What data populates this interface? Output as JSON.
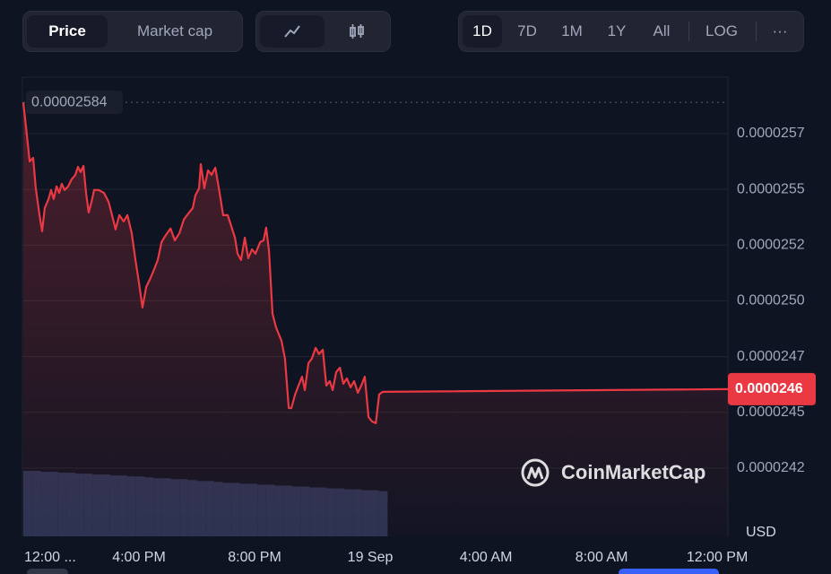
{
  "chart_data": {
    "type": "line",
    "x": [
      0,
      0.12,
      0.22,
      0.34,
      0.43,
      0.56,
      0.65,
      0.74,
      0.87,
      0.96,
      1.05,
      1.15,
      1.24,
      1.33,
      1.43,
      1.55,
      1.67,
      1.8,
      1.89,
      1.98,
      2.08,
      2.17,
      2.26,
      2.36,
      2.45,
      2.6,
      2.79,
      2.95,
      3.07,
      3.19,
      3.32,
      3.47,
      3.6,
      3.75,
      3.88,
      4,
      4.12,
      4.25,
      4.4,
      4.53,
      4.65,
      4.78,
      4.93,
      5.09,
      5.24,
      5.4,
      5.55,
      5.71,
      5.86,
      5.95,
      6.08,
      6.14,
      6.26,
      6.39,
      6.51,
      6.64,
      6.79,
      6.91,
      7.07,
      7.19,
      7.32,
      7.41,
      7.53,
      7.66,
      7.78,
      7.91,
      8.03,
      8.19,
      8.31,
      8.4,
      8.5,
      8.62,
      8.74,
      8.93,
      9.05,
      9.18,
      9.27,
      9.4,
      9.52,
      9.64,
      9.74,
      9.86,
      9.98,
      10.11,
      10.23,
      10.36,
      10.48,
      10.6,
      10.7,
      10.82,
      10.95,
      11.07,
      11.19,
      11.32,
      11.44,
      11.57,
      11.69,
      11.81,
      11.94,
      12.06,
      12.19,
      12.31,
      12.43,
      24.37
    ],
    "series": [
      {
        "name": "Price",
        "color": "#ea3943",
        "values": [
          2.584e-05,
          2.5696e-05,
          2.5575e-05,
          2.5591e-05,
          2.5455e-05,
          2.5334e-05,
          2.5262e-05,
          2.5366e-05,
          2.5406e-05,
          2.5447e-05,
          2.5406e-05,
          2.5463e-05,
          2.5434e-05,
          2.5475e-05,
          2.5447e-05,
          2.5463e-05,
          2.5495e-05,
          2.5515e-05,
          2.5551e-05,
          2.5527e-05,
          2.5555e-05,
          2.5434e-05,
          2.5346e-05,
          2.5394e-05,
          2.5447e-05,
          2.5447e-05,
          2.5434e-05,
          2.5394e-05,
          2.5334e-05,
          2.527e-05,
          2.5334e-05,
          2.5306e-05,
          2.5334e-05,
          2.5254e-05,
          2.5133e-05,
          2.5032e-05,
          2.492e-05,
          2.5012e-05,
          2.5052e-05,
          2.5093e-05,
          2.5133e-05,
          2.5213e-05,
          2.5245e-05,
          2.5274e-05,
          2.5221e-05,
          2.5254e-05,
          2.5314e-05,
          2.5342e-05,
          2.5366e-05,
          2.5422e-05,
          2.5455e-05,
          2.5563e-05,
          2.5455e-05,
          2.5535e-05,
          2.5515e-05,
          2.5547e-05,
          2.5434e-05,
          2.5334e-05,
          2.5334e-05,
          2.5286e-05,
          2.5233e-05,
          2.5161e-05,
          2.5133e-05,
          2.5233e-05,
          2.5141e-05,
          2.5181e-05,
          2.5161e-05,
          2.5213e-05,
          2.5221e-05,
          2.5278e-05,
          2.5173e-05,
          2.4892e-05,
          2.4831e-05,
          2.4771e-05,
          2.4691e-05,
          2.4469e-05,
          2.4469e-05,
          2.453e-05,
          2.457e-05,
          2.461e-05,
          2.455e-05,
          2.467e-05,
          2.4691e-05,
          2.4739e-05,
          2.4711e-05,
          2.4731e-05,
          2.457e-05,
          2.459e-05,
          2.455e-05,
          2.463e-05,
          2.465e-05,
          2.4578e-05,
          2.4602e-05,
          2.4562e-05,
          2.459e-05,
          2.4538e-05,
          2.457e-05,
          2.461e-05,
          2.4429e-05,
          2.4409e-05,
          2.4401e-05,
          2.453e-05,
          2.4542e-05,
          2.4554e-05
        ]
      }
    ],
    "xlim": [
      0,
      24.37
    ],
    "xticks": [
      {
        "value": 0,
        "label": "12:00 ..."
      },
      {
        "value": 4,
        "label": "4:00 PM"
      },
      {
        "value": 8,
        "label": "8:00 PM"
      },
      {
        "value": 12,
        "label": "19 Sep"
      },
      {
        "value": 16,
        "label": "4:00 AM"
      },
      {
        "value": 20,
        "label": "8:00 AM"
      },
      {
        "value": 24,
        "label": "12:00 PM"
      }
    ],
    "ylim": [
      2.3894e-05,
      2.5953e-05
    ],
    "yticks": [
      {
        "value": 2.57e-05,
        "label": "0.0000257"
      },
      {
        "value": 2.545e-05,
        "label": "0.0000255"
      },
      {
        "value": 2.52e-05,
        "label": "0.0000252"
      },
      {
        "value": 2.495e-05,
        "label": "0.0000250"
      },
      {
        "value": 2.47e-05,
        "label": "0.0000247"
      },
      {
        "value": 2.445e-05,
        "label": "0.0000245"
      },
      {
        "value": 2.42e-05,
        "label": "0.0000242"
      }
    ],
    "grid": true,
    "max_label": "0.00002584",
    "last_value_label": "0.0000246",
    "currency": "USD",
    "watermark": "CoinMarketCap",
    "volume": {
      "color": "#2c3658",
      "x": [
        0,
        0.3,
        0.6,
        0.9,
        1.2,
        1.5,
        1.8,
        2.1,
        2.4,
        2.7,
        3,
        3.3,
        3.6,
        3.9,
        4.2,
        4.5,
        4.8,
        5.1,
        5.4,
        5.7,
        6,
        6.3,
        6.6,
        6.9,
        7.2,
        7.5,
        7.8,
        8.1,
        8.4,
        8.7,
        9,
        9.3,
        9.6,
        9.9,
        10.2,
        10.5,
        10.8,
        11.1,
        11.4,
        11.7,
        12,
        12.3
      ],
      "values": [
        71,
        71,
        70,
        70,
        69,
        69,
        68,
        68,
        67,
        67,
        66,
        66,
        65,
        65,
        64,
        63,
        63,
        62,
        62,
        61,
        60,
        60,
        59,
        58,
        58,
        57,
        57,
        56,
        56,
        55,
        55,
        54,
        54,
        53,
        53,
        52,
        52,
        51,
        51,
        50,
        50,
        49
      ]
    }
  },
  "toolbar": {
    "view": [
      "Price",
      "Market cap"
    ],
    "ranges": [
      "1D",
      "7D",
      "1M",
      "1Y",
      "All"
    ],
    "log": "LOG",
    "more": "···"
  }
}
